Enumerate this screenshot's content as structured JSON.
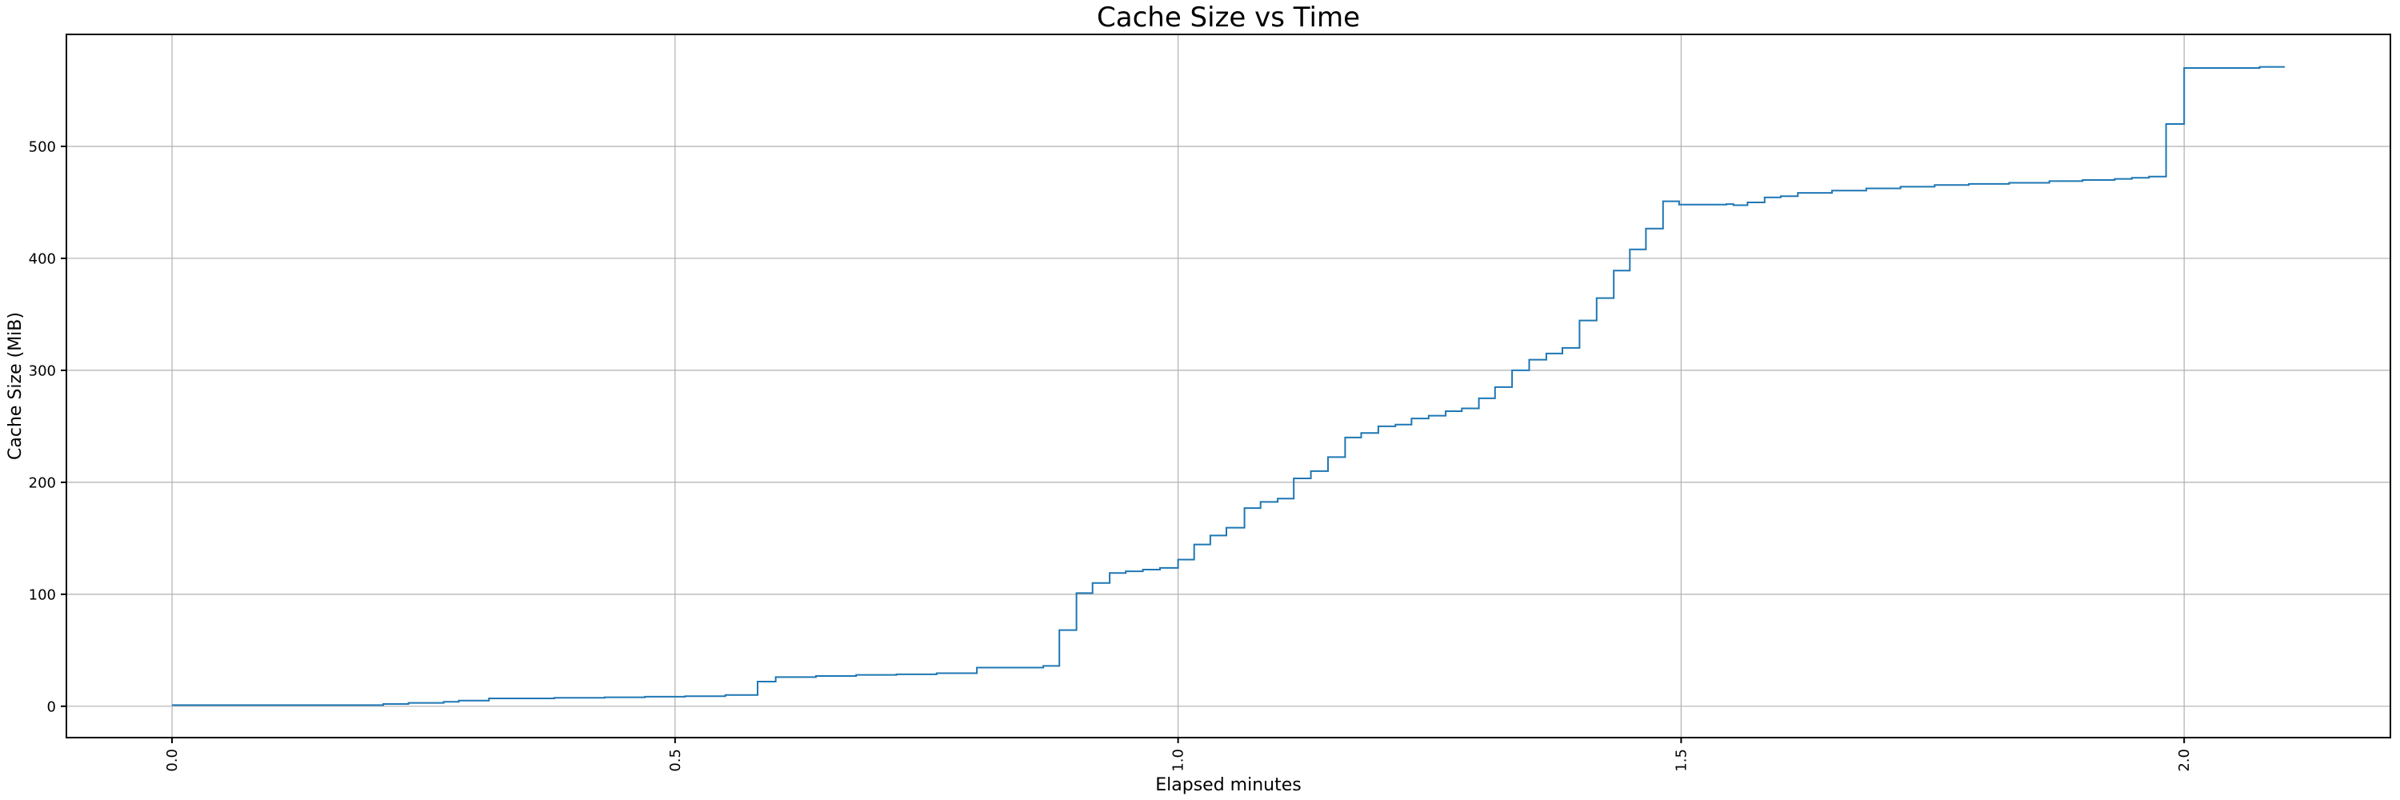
{
  "figure": {
    "title": "Cache Size vs Time",
    "xlabel": "Elapsed minutes",
    "ylabel": "Cache Size (MiB)"
  },
  "chart_data": {
    "type": "line",
    "line_style": "step-post",
    "title": "Cache Size vs Time",
    "xlabel": "Elapsed minutes",
    "ylabel": "Cache Size (MiB)",
    "grid": true,
    "x_ticks": [
      0.0,
      0.5,
      1.0,
      1.5,
      2.0
    ],
    "x_tick_labels": [
      "0.0",
      "0.5",
      "1.0",
      "1.5",
      "2.0"
    ],
    "x_tick_rotation_deg": 90,
    "y_ticks": [
      0,
      100,
      200,
      300,
      400,
      500
    ],
    "y_tick_labels": [
      "0",
      "100",
      "200",
      "300",
      "400",
      "500"
    ],
    "xlim": [
      -0.105,
      2.205
    ],
    "ylim": [
      -28,
      600
    ],
    "colors": {
      "line": "#1f77b4",
      "grid": "#b0b0b0",
      "spine": "#000000",
      "background": "#ffffff"
    },
    "series": [
      {
        "name": "cache-size",
        "points": [
          [
            0.0,
            1
          ],
          [
            0.21,
            2
          ],
          [
            0.235,
            3
          ],
          [
            0.27,
            4
          ],
          [
            0.285,
            5
          ],
          [
            0.315,
            7
          ],
          [
            0.38,
            7.5
          ],
          [
            0.43,
            8
          ],
          [
            0.47,
            8.5
          ],
          [
            0.51,
            9
          ],
          [
            0.55,
            10
          ],
          [
            0.582,
            22
          ],
          [
            0.6,
            26
          ],
          [
            0.64,
            27
          ],
          [
            0.68,
            28
          ],
          [
            0.72,
            28.5
          ],
          [
            0.76,
            29.5
          ],
          [
            0.8,
            34.5
          ],
          [
            0.866,
            36
          ],
          [
            0.882,
            68
          ],
          [
            0.899,
            101
          ],
          [
            0.915,
            110
          ],
          [
            0.932,
            119
          ],
          [
            0.948,
            120.5
          ],
          [
            0.965,
            122
          ],
          [
            0.982,
            123.5
          ],
          [
            1.0,
            131
          ],
          [
            1.016,
            144.5
          ],
          [
            1.032,
            152.5
          ],
          [
            1.048,
            159.5
          ],
          [
            1.066,
            177
          ],
          [
            1.082,
            182.5
          ],
          [
            1.099,
            185.5
          ],
          [
            1.115,
            203.5
          ],
          [
            1.132,
            210
          ],
          [
            1.149,
            222.5
          ],
          [
            1.166,
            240
          ],
          [
            1.182,
            244
          ],
          [
            1.199,
            250
          ],
          [
            1.216,
            251.5
          ],
          [
            1.232,
            257
          ],
          [
            1.249,
            259.5
          ],
          [
            1.266,
            263.5
          ],
          [
            1.282,
            266
          ],
          [
            1.299,
            275
          ],
          [
            1.315,
            285
          ],
          [
            1.332,
            300
          ],
          [
            1.349,
            309.5
          ],
          [
            1.366,
            315
          ],
          [
            1.382,
            320
          ],
          [
            1.399,
            344.5
          ],
          [
            1.416,
            364.5
          ],
          [
            1.433,
            389
          ],
          [
            1.449,
            408
          ],
          [
            1.465,
            426.5
          ],
          [
            1.482,
            451
          ],
          [
            1.498,
            448
          ],
          [
            1.545,
            448.5
          ],
          [
            1.552,
            447.5
          ],
          [
            1.566,
            450
          ],
          [
            1.583,
            454.5
          ],
          [
            1.599,
            455.5
          ],
          [
            1.616,
            458.5
          ],
          [
            1.65,
            460.5
          ],
          [
            1.684,
            462.5
          ],
          [
            1.718,
            464
          ],
          [
            1.752,
            465.5
          ],
          [
            1.786,
            466.5
          ],
          [
            1.826,
            467.5
          ],
          [
            1.866,
            469
          ],
          [
            1.899,
            470
          ],
          [
            1.931,
            471
          ],
          [
            1.948,
            472
          ],
          [
            1.965,
            473
          ],
          [
            1.982,
            520
          ],
          [
            2.0,
            570
          ],
          [
            2.075,
            571
          ],
          [
            2.1,
            571
          ]
        ]
      }
    ]
  }
}
